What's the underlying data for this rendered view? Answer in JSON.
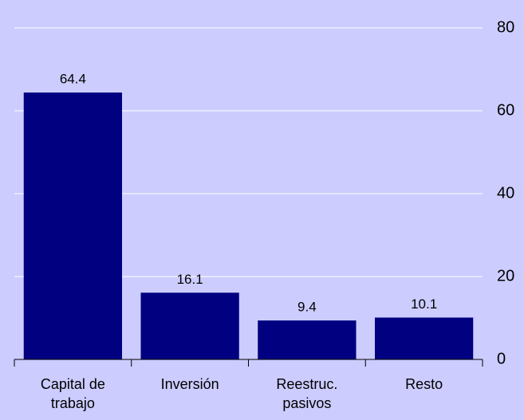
{
  "chart_data": {
    "type": "bar",
    "categories": [
      "Capital de trabajo",
      "Inversión",
      "Reestruc. pasivos",
      "Resto"
    ],
    "values": [
      64.4,
      16.1,
      9.4,
      10.1
    ],
    "color": "#000080",
    "ylim": [
      0,
      80
    ],
    "yticks": [
      0,
      20,
      40,
      60,
      80
    ],
    "grid": true
  }
}
